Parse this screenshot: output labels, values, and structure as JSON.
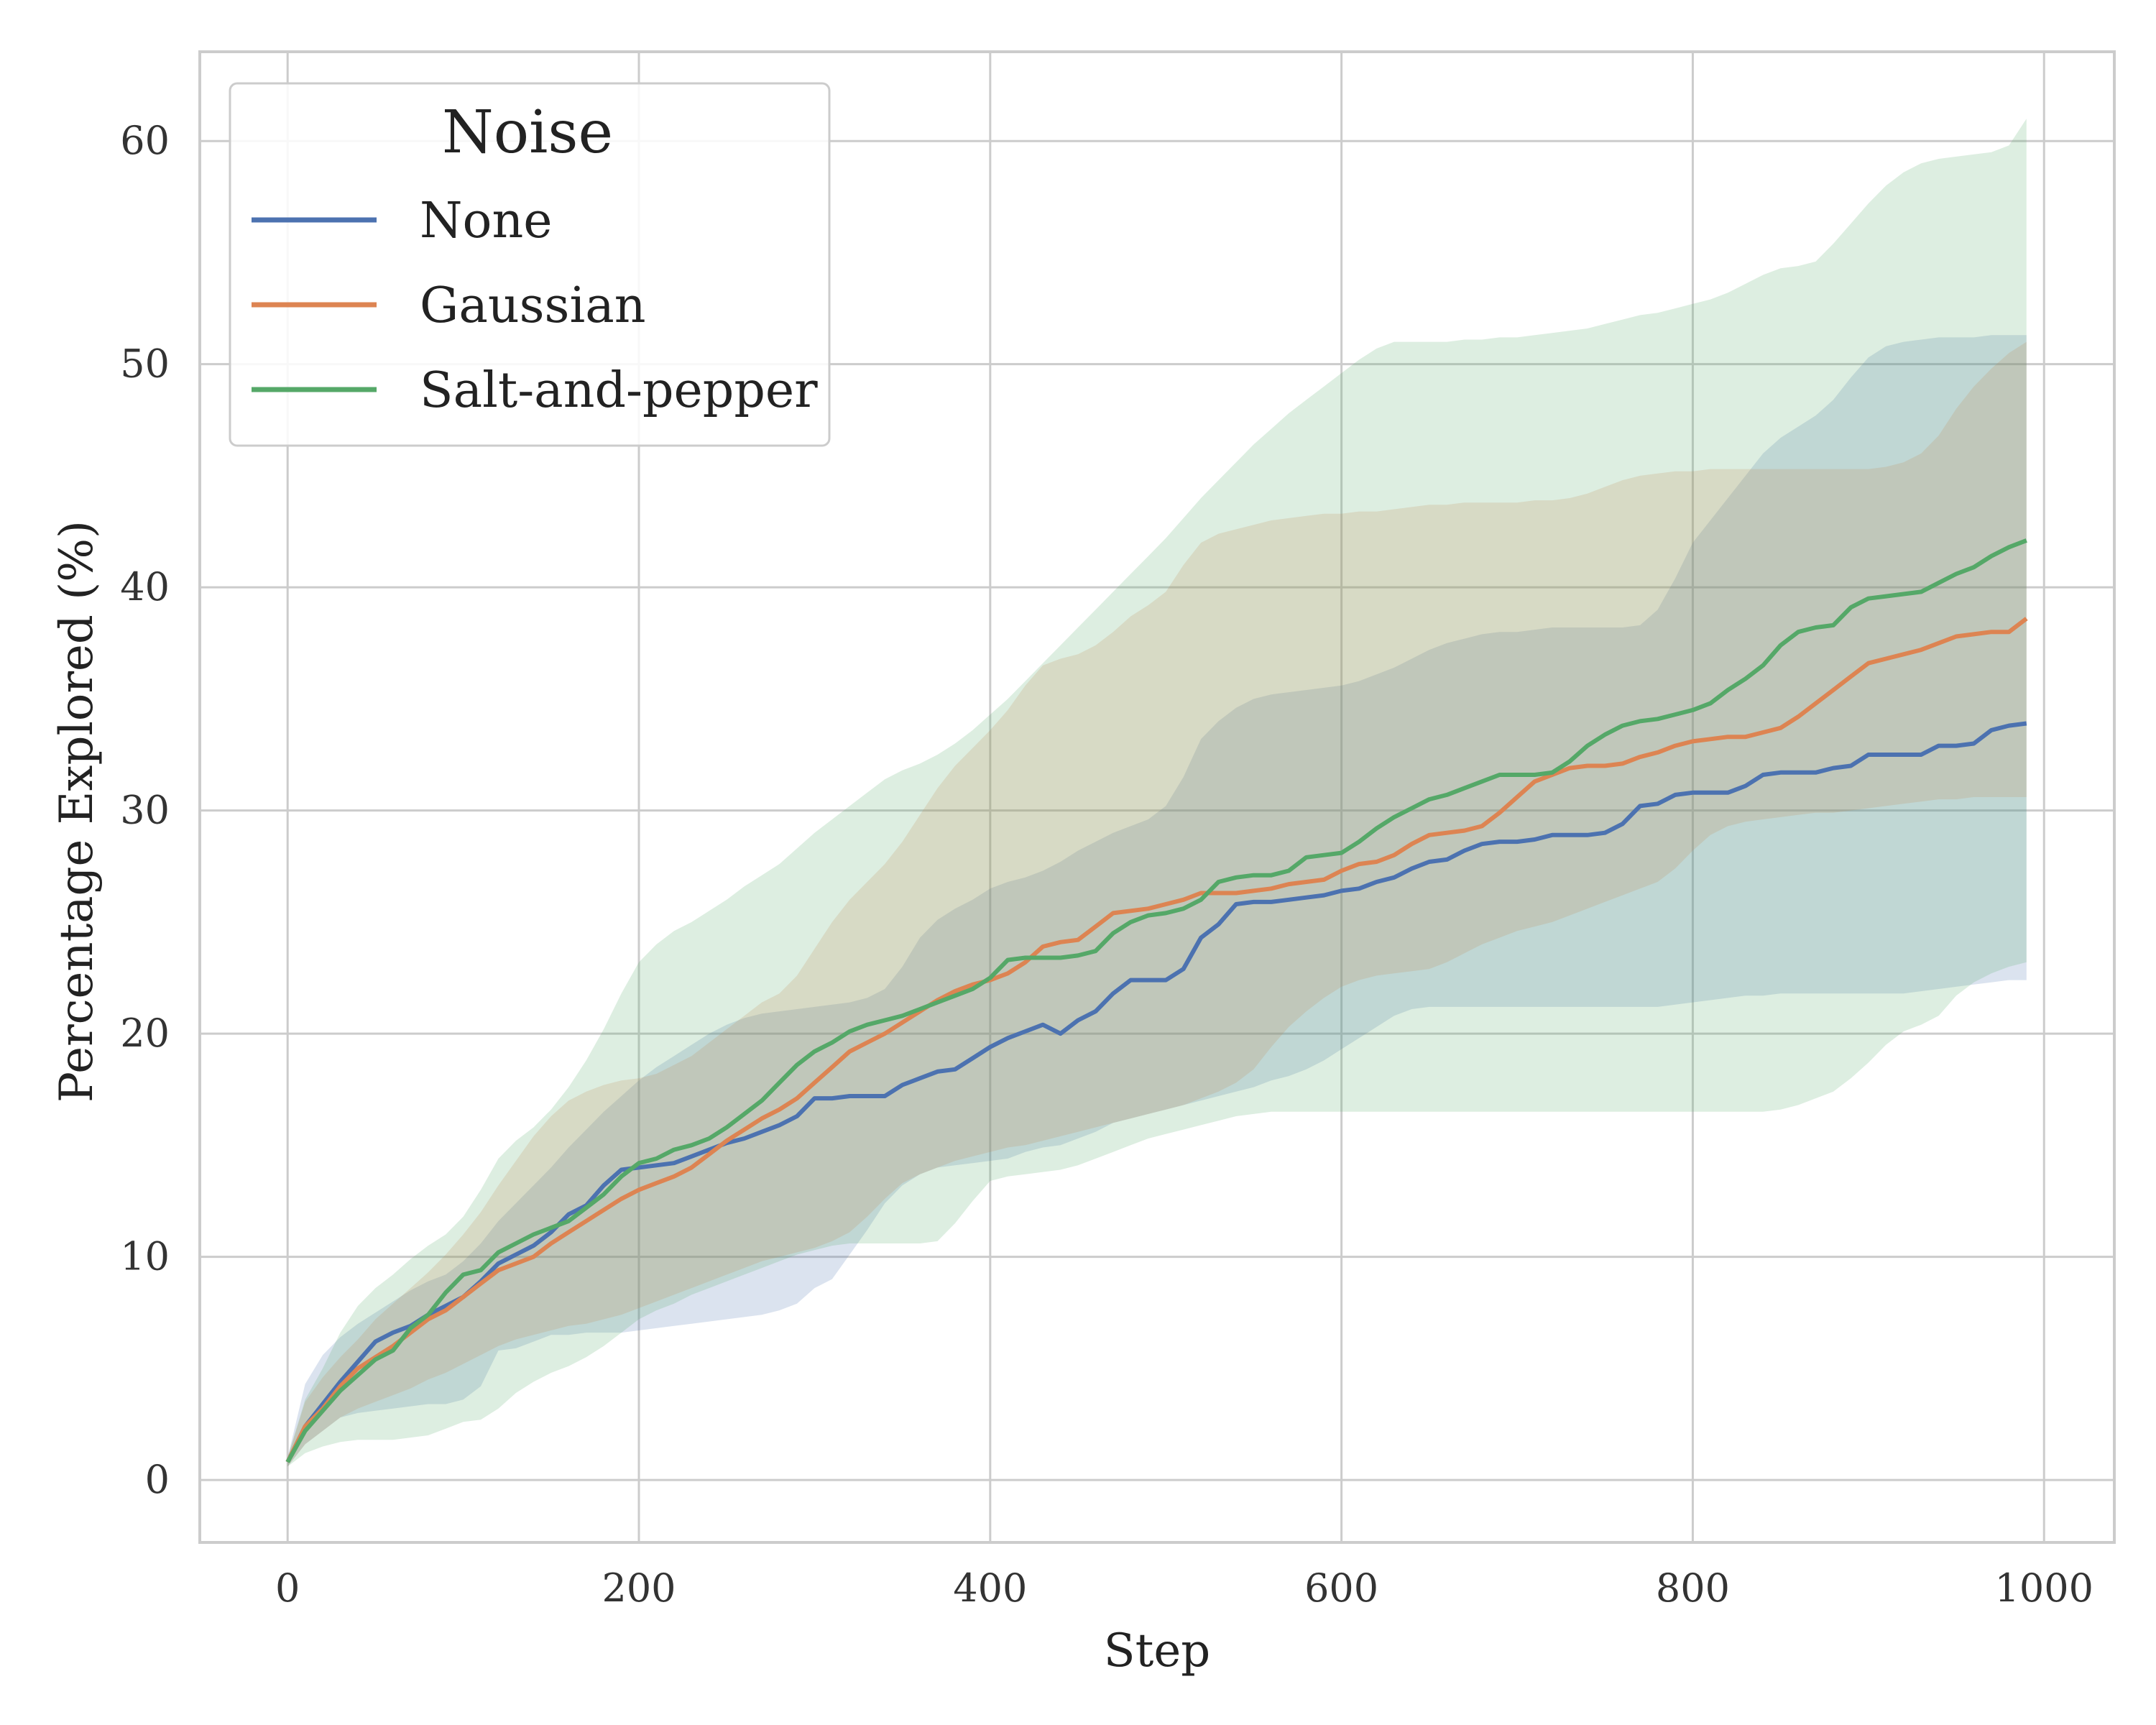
{
  "chart_data": {
    "type": "line",
    "title": "",
    "xlabel": "Step",
    "ylabel": "Percentage Explored (%)",
    "xlim": [
      -50,
      1040
    ],
    "ylim": [
      -2.8,
      64
    ],
    "xticks": [
      0,
      200,
      400,
      600,
      800,
      1000
    ],
    "yticks": [
      0,
      10,
      20,
      30,
      40,
      50,
      60
    ],
    "grid": true,
    "legend": {
      "title": "Noise",
      "position": "top-left"
    },
    "x": [
      0,
      10,
      20,
      30,
      40,
      50,
      60,
      70,
      80,
      90,
      100,
      110,
      120,
      130,
      140,
      150,
      160,
      170,
      180,
      190,
      200,
      210,
      220,
      230,
      240,
      250,
      260,
      270,
      280,
      290,
      300,
      310,
      320,
      330,
      340,
      350,
      360,
      370,
      380,
      390,
      400,
      410,
      420,
      430,
      440,
      450,
      460,
      470,
      480,
      490,
      500,
      510,
      520,
      530,
      540,
      550,
      560,
      570,
      580,
      590,
      600,
      610,
      620,
      630,
      640,
      650,
      660,
      670,
      680,
      690,
      700,
      710,
      720,
      730,
      740,
      750,
      760,
      770,
      780,
      790,
      800,
      810,
      820,
      830,
      840,
      850,
      860,
      870,
      880,
      890,
      900,
      910,
      920,
      930,
      940,
      950,
      960,
      970,
      980,
      990
    ],
    "series": [
      {
        "name": "None",
        "color": "#4c72b0",
        "values": [
          0.8,
          2.4,
          3.4,
          4.4,
          5.3,
          6.2,
          6.6,
          6.9,
          7.4,
          7.8,
          8.2,
          8.9,
          9.7,
          10.1,
          10.5,
          11.1,
          11.9,
          12.3,
          13.2,
          13.9,
          14.0,
          14.1,
          14.2,
          14.5,
          14.8,
          15.1,
          15.3,
          15.6,
          15.9,
          16.3,
          17.1,
          17.1,
          17.2,
          17.2,
          17.2,
          17.7,
          18.0,
          18.3,
          18.4,
          18.9,
          19.4,
          19.8,
          20.1,
          20.4,
          20.0,
          20.6,
          21.0,
          21.8,
          22.4,
          22.4,
          22.4,
          22.9,
          24.3,
          24.9,
          25.8,
          25.9,
          25.9,
          26.0,
          26.1,
          26.2,
          26.4,
          26.5,
          26.8,
          27.0,
          27.4,
          27.7,
          27.8,
          28.2,
          28.5,
          28.6,
          28.6,
          28.7,
          28.9,
          28.9,
          28.9,
          29.0,
          29.4,
          30.2,
          30.3,
          30.7,
          30.8,
          30.8,
          30.8,
          31.1,
          31.6,
          31.7,
          31.7,
          31.7,
          31.9,
          32.0,
          32.5,
          32.5,
          32.5,
          32.5,
          32.9,
          32.9,
          33.0,
          33.6,
          33.8,
          33.9
        ],
        "lower": [
          0.6,
          1.6,
          2.2,
          2.8,
          3.0,
          3.1,
          3.2,
          3.3,
          3.4,
          3.4,
          3.6,
          4.2,
          5.8,
          5.9,
          6.2,
          6.5,
          6.5,
          6.6,
          6.6,
          6.6,
          6.7,
          6.8,
          6.9,
          7.0,
          7.1,
          7.2,
          7.3,
          7.4,
          7.6,
          7.9,
          8.6,
          9.0,
          10.1,
          11.2,
          12.4,
          13.2,
          13.7,
          14.0,
          14.1,
          14.2,
          14.3,
          14.4,
          14.7,
          14.9,
          15.0,
          15.3,
          15.6,
          16.0,
          16.2,
          16.4,
          16.6,
          16.8,
          17.0,
          17.2,
          17.4,
          17.6,
          17.9,
          18.1,
          18.4,
          18.8,
          19.3,
          19.8,
          20.3,
          20.8,
          21.1,
          21.2,
          21.2,
          21.2,
          21.2,
          21.2,
          21.2,
          21.2,
          21.2,
          21.2,
          21.2,
          21.2,
          21.2,
          21.2,
          21.2,
          21.3,
          21.4,
          21.5,
          21.6,
          21.7,
          21.7,
          21.8,
          21.8,
          21.8,
          21.8,
          21.8,
          21.8,
          21.8,
          21.8,
          21.9,
          22.0,
          22.1,
          22.2,
          22.3,
          22.4,
          22.4
        ],
        "upper": [
          1.0,
          4.3,
          5.6,
          6.4,
          7.0,
          7.5,
          8.0,
          8.5,
          8.9,
          9.2,
          9.8,
          10.6,
          11.6,
          12.4,
          13.2,
          14.0,
          14.9,
          15.7,
          16.5,
          17.2,
          17.9,
          18.5,
          19.0,
          19.5,
          20.0,
          20.4,
          20.7,
          20.9,
          21.0,
          21.1,
          21.2,
          21.3,
          21.4,
          21.6,
          22.0,
          23.0,
          24.3,
          25.1,
          25.6,
          26.0,
          26.5,
          26.8,
          27.0,
          27.3,
          27.7,
          28.2,
          28.6,
          29.0,
          29.3,
          29.6,
          30.2,
          31.5,
          33.2,
          34.0,
          34.6,
          35.0,
          35.2,
          35.3,
          35.4,
          35.5,
          35.6,
          35.8,
          36.1,
          36.4,
          36.8,
          37.2,
          37.5,
          37.7,
          37.9,
          38.0,
          38.0,
          38.1,
          38.2,
          38.2,
          38.2,
          38.2,
          38.2,
          38.3,
          39.0,
          40.4,
          42.0,
          43.0,
          44.0,
          45.0,
          46.0,
          46.7,
          47.2,
          47.7,
          48.4,
          49.4,
          50.3,
          50.8,
          51.0,
          51.1,
          51.2,
          51.2,
          51.2,
          51.3,
          51.3,
          51.3
        ]
      },
      {
        "name": "Gaussian",
        "color": "#dd8452",
        "values": [
          0.8,
          2.4,
          3.2,
          4.2,
          5.0,
          5.5,
          6.0,
          6.6,
          7.2,
          7.6,
          8.2,
          8.8,
          9.4,
          9.7,
          10.0,
          10.6,
          11.1,
          11.6,
          12.1,
          12.6,
          13.0,
          13.3,
          13.6,
          14.0,
          14.6,
          15.2,
          15.7,
          16.2,
          16.6,
          17.1,
          17.8,
          18.5,
          19.2,
          19.6,
          20.0,
          20.5,
          21.0,
          21.5,
          21.9,
          22.2,
          22.4,
          22.7,
          23.2,
          23.9,
          24.1,
          24.2,
          24.8,
          25.4,
          25.5,
          25.6,
          25.8,
          26.0,
          26.3,
          26.3,
          26.3,
          26.4,
          26.5,
          26.7,
          26.8,
          26.9,
          27.3,
          27.6,
          27.7,
          28.0,
          28.5,
          28.9,
          29.0,
          29.1,
          29.3,
          29.9,
          30.6,
          31.3,
          31.6,
          31.9,
          32.0,
          32.0,
          32.1,
          32.4,
          32.6,
          32.9,
          33.1,
          33.2,
          33.3,
          33.3,
          33.5,
          33.7,
          34.2,
          34.8,
          35.4,
          36.0,
          36.6,
          36.8,
          37.0,
          37.2,
          37.5,
          37.8,
          37.9,
          38.0,
          38.0,
          38.6
        ],
        "lower": [
          0.6,
          1.6,
          2.2,
          2.8,
          3.2,
          3.5,
          3.8,
          4.1,
          4.5,
          4.8,
          5.2,
          5.6,
          6.0,
          6.3,
          6.5,
          6.7,
          6.9,
          7.0,
          7.2,
          7.4,
          7.7,
          8.0,
          8.3,
          8.6,
          8.9,
          9.2,
          9.5,
          9.8,
          10.0,
          10.2,
          10.4,
          10.7,
          11.1,
          11.8,
          12.6,
          13.3,
          13.7,
          14.0,
          14.3,
          14.5,
          14.7,
          14.9,
          15.0,
          15.2,
          15.4,
          15.6,
          15.8,
          16.0,
          16.2,
          16.4,
          16.6,
          16.8,
          17.1,
          17.4,
          17.8,
          18.4,
          19.4,
          20.3,
          21.0,
          21.6,
          22.1,
          22.4,
          22.6,
          22.7,
          22.8,
          22.9,
          23.2,
          23.6,
          24.0,
          24.3,
          24.6,
          24.8,
          25.0,
          25.3,
          25.6,
          25.9,
          26.2,
          26.5,
          26.8,
          27.4,
          28.2,
          28.9,
          29.3,
          29.5,
          29.6,
          29.7,
          29.8,
          29.9,
          29.9,
          30.0,
          30.1,
          30.2,
          30.3,
          30.4,
          30.5,
          30.5,
          30.6,
          30.6,
          30.6,
          30.6
        ],
        "upper": [
          1.0,
          3.5,
          4.6,
          5.5,
          6.3,
          7.2,
          7.9,
          8.6,
          9.3,
          10.1,
          11.0,
          12.0,
          13.2,
          14.3,
          15.4,
          16.3,
          17.0,
          17.4,
          17.7,
          17.9,
          18.0,
          18.2,
          18.6,
          19.0,
          19.6,
          20.2,
          20.8,
          21.4,
          21.8,
          22.6,
          23.8,
          25.0,
          26.0,
          26.8,
          27.6,
          28.6,
          29.8,
          31.0,
          32.0,
          32.8,
          33.6,
          34.5,
          35.6,
          36.5,
          36.8,
          37.0,
          37.4,
          38.0,
          38.7,
          39.2,
          39.8,
          41.0,
          42.0,
          42.4,
          42.6,
          42.8,
          43.0,
          43.1,
          43.2,
          43.3,
          43.3,
          43.4,
          43.4,
          43.5,
          43.6,
          43.7,
          43.7,
          43.8,
          43.8,
          43.8,
          43.8,
          43.9,
          43.9,
          44.0,
          44.2,
          44.5,
          44.8,
          45.0,
          45.1,
          45.2,
          45.2,
          45.3,
          45.3,
          45.3,
          45.3,
          45.3,
          45.3,
          45.3,
          45.3,
          45.3,
          45.3,
          45.4,
          45.6,
          46.0,
          46.8,
          48.0,
          49.0,
          49.8,
          50.5,
          51.0
        ],
        "overlap_note": ""
      },
      {
        "name": "Salt-and-pepper",
        "color": "#55a868",
        "values": [
          0.8,
          2.2,
          3.1,
          4.0,
          4.7,
          5.4,
          5.8,
          6.8,
          7.4,
          8.4,
          9.2,
          9.4,
          10.2,
          10.6,
          11.0,
          11.3,
          11.6,
          12.2,
          12.8,
          13.6,
          14.2,
          14.4,
          14.8,
          15.0,
          15.3,
          15.8,
          16.4,
          17.0,
          17.8,
          18.6,
          19.2,
          19.6,
          20.1,
          20.4,
          20.6,
          20.8,
          21.1,
          21.4,
          21.7,
          22.0,
          22.5,
          23.3,
          23.4,
          23.4,
          23.4,
          23.5,
          23.7,
          24.5,
          25.0,
          25.3,
          25.4,
          25.6,
          26.0,
          26.8,
          27.0,
          27.1,
          27.1,
          27.3,
          27.9,
          28.0,
          28.1,
          28.6,
          29.2,
          29.7,
          30.1,
          30.5,
          30.7,
          31.0,
          31.3,
          31.6,
          31.6,
          31.6,
          31.7,
          32.2,
          32.9,
          33.4,
          33.8,
          34.0,
          34.1,
          34.3,
          34.5,
          34.8,
          35.4,
          35.9,
          36.5,
          37.4,
          38.0,
          38.2,
          38.3,
          39.1,
          39.5,
          39.6,
          39.7,
          39.8,
          40.2,
          40.6,
          40.9,
          41.4,
          41.8,
          42.1
        ],
        "lower": [
          0.6,
          1.2,
          1.5,
          1.7,
          1.8,
          1.8,
          1.8,
          1.9,
          2.0,
          2.3,
          2.6,
          2.7,
          3.2,
          3.9,
          4.4,
          4.8,
          5.1,
          5.5,
          6.0,
          6.6,
          7.2,
          7.6,
          7.9,
          8.3,
          8.6,
          8.9,
          9.2,
          9.5,
          9.8,
          10.1,
          10.3,
          10.5,
          10.6,
          10.6,
          10.6,
          10.6,
          10.6,
          10.7,
          11.5,
          12.5,
          13.4,
          13.6,
          13.7,
          13.8,
          13.9,
          14.1,
          14.4,
          14.7,
          15.0,
          15.3,
          15.5,
          15.7,
          15.9,
          16.1,
          16.3,
          16.4,
          16.5,
          16.5,
          16.5,
          16.5,
          16.5,
          16.5,
          16.5,
          16.5,
          16.5,
          16.5,
          16.5,
          16.5,
          16.5,
          16.5,
          16.5,
          16.5,
          16.5,
          16.5,
          16.5,
          16.5,
          16.5,
          16.5,
          16.5,
          16.5,
          16.5,
          16.5,
          16.5,
          16.5,
          16.5,
          16.6,
          16.8,
          17.1,
          17.4,
          18.0,
          18.7,
          19.5,
          20.1,
          20.4,
          20.8,
          21.7,
          22.3,
          22.7,
          23.0,
          23.2
        ],
        "upper": [
          1.0,
          3.6,
          5.0,
          6.6,
          7.8,
          8.6,
          9.2,
          9.9,
          10.5,
          11.0,
          11.8,
          13.0,
          14.4,
          15.2,
          15.8,
          16.6,
          17.6,
          18.8,
          20.2,
          21.8,
          23.2,
          24.0,
          24.6,
          25.0,
          25.5,
          26.0,
          26.6,
          27.1,
          27.6,
          28.3,
          29.0,
          29.6,
          30.2,
          30.8,
          31.4,
          31.8,
          32.1,
          32.5,
          33.0,
          33.6,
          34.3,
          35.0,
          35.8,
          36.6,
          37.4,
          38.2,
          39.0,
          39.8,
          40.6,
          41.4,
          42.2,
          43.1,
          44.0,
          44.8,
          45.6,
          46.4,
          47.1,
          47.8,
          48.4,
          49.0,
          49.6,
          50.2,
          50.7,
          51.0,
          51.0,
          51.0,
          51.0,
          51.1,
          51.1,
          51.2,
          51.2,
          51.3,
          51.4,
          51.5,
          51.6,
          51.8,
          52.0,
          52.2,
          52.3,
          52.5,
          52.7,
          52.9,
          53.2,
          53.6,
          54.0,
          54.3,
          54.4,
          54.6,
          55.4,
          56.3,
          57.2,
          58.0,
          58.6,
          59.0,
          59.2,
          59.3,
          59.4,
          59.5,
          59.8,
          61.0
        ]
      }
    ]
  }
}
